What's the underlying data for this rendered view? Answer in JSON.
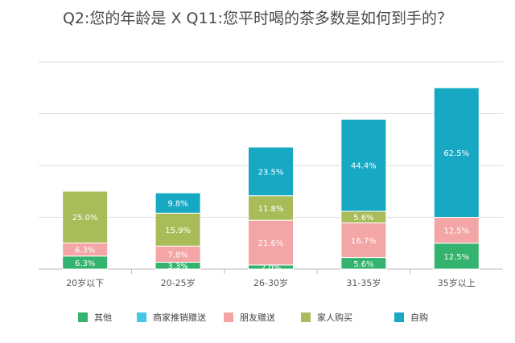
{
  "chart_data": {
    "type": "bar",
    "stacked": true,
    "title": "Q2:您的年龄是 X Q11:您平时喝的茶多数是如何到手的？",
    "categories": [
      "20岁以下",
      "20-25岁",
      "26-30岁",
      "31-35岁",
      "35岁以上"
    ],
    "series": [
      {
        "name": "其他",
        "color": "#33b36e",
        "values": [
          6.3,
          3.3,
          2.0,
          5.6,
          12.5
        ],
        "labels": [
          "6.3%",
          "3.3%",
          "2.0%",
          "5.6%",
          "12.5%"
        ]
      },
      {
        "name": "商家推销赠送",
        "color": "#45c8e6",
        "values": [
          0,
          0,
          0,
          0,
          0
        ],
        "labels": [
          "",
          "",
          "",
          "",
          ""
        ]
      },
      {
        "name": "朋友赠送",
        "color": "#f4a6a6",
        "values": [
          6.3,
          7.8,
          21.6,
          16.7,
          12.5
        ],
        "labels": [
          "6.3%",
          "7.8%",
          "21.6%",
          "16.7%",
          "12.5%"
        ]
      },
      {
        "name": "家人购买",
        "color": "#a9bc5a",
        "values": [
          25.0,
          15.9,
          11.8,
          5.6,
          0
        ],
        "labels": [
          "25.0%",
          "15.9%",
          "11.8%",
          "5.6%",
          ""
        ]
      },
      {
        "name": "自购",
        "color": "#17a9c4",
        "values": [
          0,
          9.8,
          23.5,
          44.4,
          62.5
        ],
        "labels": [
          "",
          "9.8%",
          "23.5%",
          "44.4%",
          "62.5%"
        ]
      }
    ],
    "grid": true,
    "legend_position": "bottom"
  }
}
